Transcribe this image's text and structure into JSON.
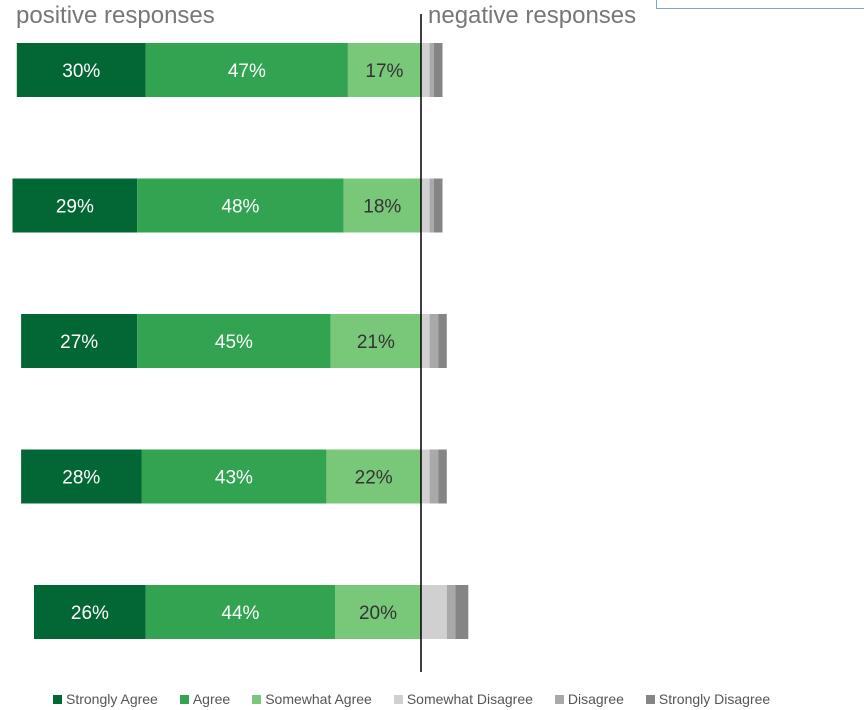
{
  "headings": {
    "positive": "positive responses",
    "negative": "negative responses"
  },
  "colors": {
    "Strongly Agree": "#036735",
    "Agree": "#32a350",
    "Somewhat Agree": "#79c879",
    "Somewhat Disagree": "#d0d0d0",
    "Disagree": "#a9a9a9",
    "Strongly Disagree": "#858585",
    "divider": "#000000",
    "label_dark_bg": "#ffffff",
    "label_light_bg": "#333333"
  },
  "chart_data": {
    "type": "bar",
    "orientation": "horizontal",
    "stacked": true,
    "diverging": true,
    "categories": [
      "",
      "",
      "",
      "",
      ""
    ],
    "series": [
      {
        "name": "Strongly Agree",
        "values": [
          30,
          29,
          27,
          28,
          26
        ],
        "labels": [
          "30%",
          "29%",
          "27%",
          "28%",
          "26%"
        ]
      },
      {
        "name": "Agree",
        "values": [
          47,
          48,
          45,
          43,
          44
        ],
        "labels": [
          "47%",
          "48%",
          "45%",
          "43%",
          "44%"
        ]
      },
      {
        "name": "Somewhat Agree",
        "values": [
          17,
          18,
          21,
          22,
          20
        ],
        "labels": [
          "17%",
          "18%",
          "21%",
          "22%",
          "20%"
        ]
      },
      {
        "name": "Somewhat Disagree",
        "values": [
          2,
          2,
          2,
          2,
          6
        ]
      },
      {
        "name": "Disagree",
        "values": [
          1,
          1,
          2,
          2,
          2
        ]
      },
      {
        "name": "Strongly Disagree",
        "values": [
          2,
          2,
          2,
          2,
          3
        ]
      }
    ],
    "positive_series": [
      "Strongly Agree",
      "Agree",
      "Somewhat Agree"
    ],
    "negative_series": [
      "Somewhat Disagree",
      "Disagree",
      "Strongly Disagree"
    ],
    "legend_position": "bottom"
  }
}
